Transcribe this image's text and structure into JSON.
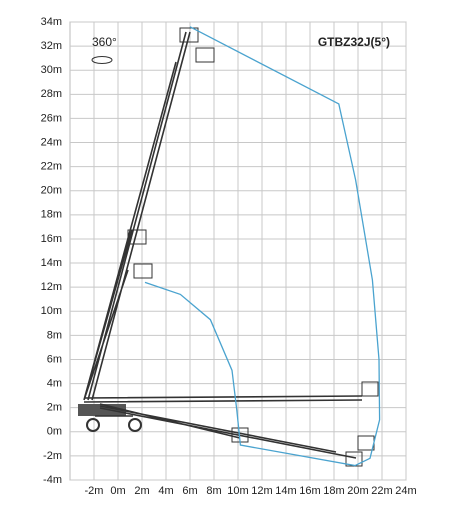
{
  "chart_data": {
    "type": "line",
    "title": "GTBZ32J(5°)",
    "annotation": "360°",
    "x": [
      6,
      18.4,
      19.8,
      21.2,
      21.75,
      21.8,
      21,
      19.75,
      10.2,
      9.9,
      9.5,
      7.7,
      5.2,
      2.25
    ],
    "values": [
      33.6,
      27.2,
      20.9,
      12.6,
      6,
      1,
      -2.2,
      -2.8,
      -1.1,
      1.8,
      5.1,
      9.3,
      11.4,
      12.4
    ],
    "color": "#4aa3cf",
    "xlim": [
      -4,
      24
    ],
    "xticks": [
      {
        "value": -2,
        "label": "-2m"
      },
      {
        "value": 0,
        "label": "0m"
      },
      {
        "value": 2,
        "label": "2m"
      },
      {
        "value": 4,
        "label": "4m"
      },
      {
        "value": 6,
        "label": "6m"
      },
      {
        "value": 8,
        "label": "8m"
      },
      {
        "value": 10,
        "label": "10m"
      },
      {
        "value": 12,
        "label": "12m"
      },
      {
        "value": 14,
        "label": "14m"
      },
      {
        "value": 16,
        "label": "16m"
      },
      {
        "value": 18,
        "label": "18m"
      },
      {
        "value": 20,
        "label": "20m"
      },
      {
        "value": 22,
        "label": "22m"
      },
      {
        "value": 24,
        "label": "24m"
      }
    ],
    "ylim": [
      -4,
      34
    ],
    "yticks": [
      {
        "value": -4,
        "label": "-4m"
      },
      {
        "value": -2,
        "label": "-2m"
      },
      {
        "value": 0,
        "label": "0m"
      },
      {
        "value": 2,
        "label": "2m"
      },
      {
        "value": 4,
        "label": "4m"
      },
      {
        "value": 6,
        "label": "6m"
      },
      {
        "value": 8,
        "label": "8m"
      },
      {
        "value": 10,
        "label": "10m"
      },
      {
        "value": 12,
        "label": "12m"
      },
      {
        "value": 14,
        "label": "14m"
      },
      {
        "value": 16,
        "label": "16m"
      },
      {
        "value": 18,
        "label": "18m"
      },
      {
        "value": 20,
        "label": "20m"
      },
      {
        "value": 22,
        "label": "22m"
      },
      {
        "value": 24,
        "label": "24m"
      },
      {
        "value": 26,
        "label": "26m"
      },
      {
        "value": 28,
        "label": "28m"
      },
      {
        "value": 30,
        "label": "30m"
      },
      {
        "value": 32,
        "label": "32m"
      },
      {
        "value": 34,
        "label": "34m"
      }
    ],
    "grid": true
  }
}
